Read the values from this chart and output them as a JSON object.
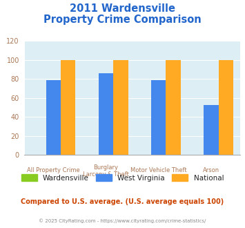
{
  "title_line1": "2011 Wardensville",
  "title_line2": "Property Crime Comparison",
  "cat_labels_line1": [
    "All Property Crime",
    "Burglary",
    "Motor Vehicle Theft",
    "Arson"
  ],
  "cat_labels_line2": [
    "",
    "Larceny & Theft",
    "",
    ""
  ],
  "series": {
    "Wardensville": [
      0,
      0,
      0,
      0
    ],
    "West Virginia": [
      79,
      86,
      79,
      53
    ],
    "National": [
      100,
      100,
      100,
      100
    ]
  },
  "colors": {
    "Wardensville": "#88cc22",
    "West Virginia": "#4488ee",
    "National": "#ffaa22"
  },
  "ylim": [
    0,
    120
  ],
  "yticks": [
    0,
    20,
    40,
    60,
    80,
    100,
    120
  ],
  "plot_bg": "#ddeef5",
  "title_color": "#2266cc",
  "axis_label_color": "#aa7755",
  "legend_label_color": "#222222",
  "footnote": "Compared to U.S. average. (U.S. average equals 100)",
  "footnote2": "© 2025 CityRating.com - https://www.cityrating.com/crime-statistics/",
  "footnote_color": "#cc4400",
  "footnote2_color": "#888888"
}
